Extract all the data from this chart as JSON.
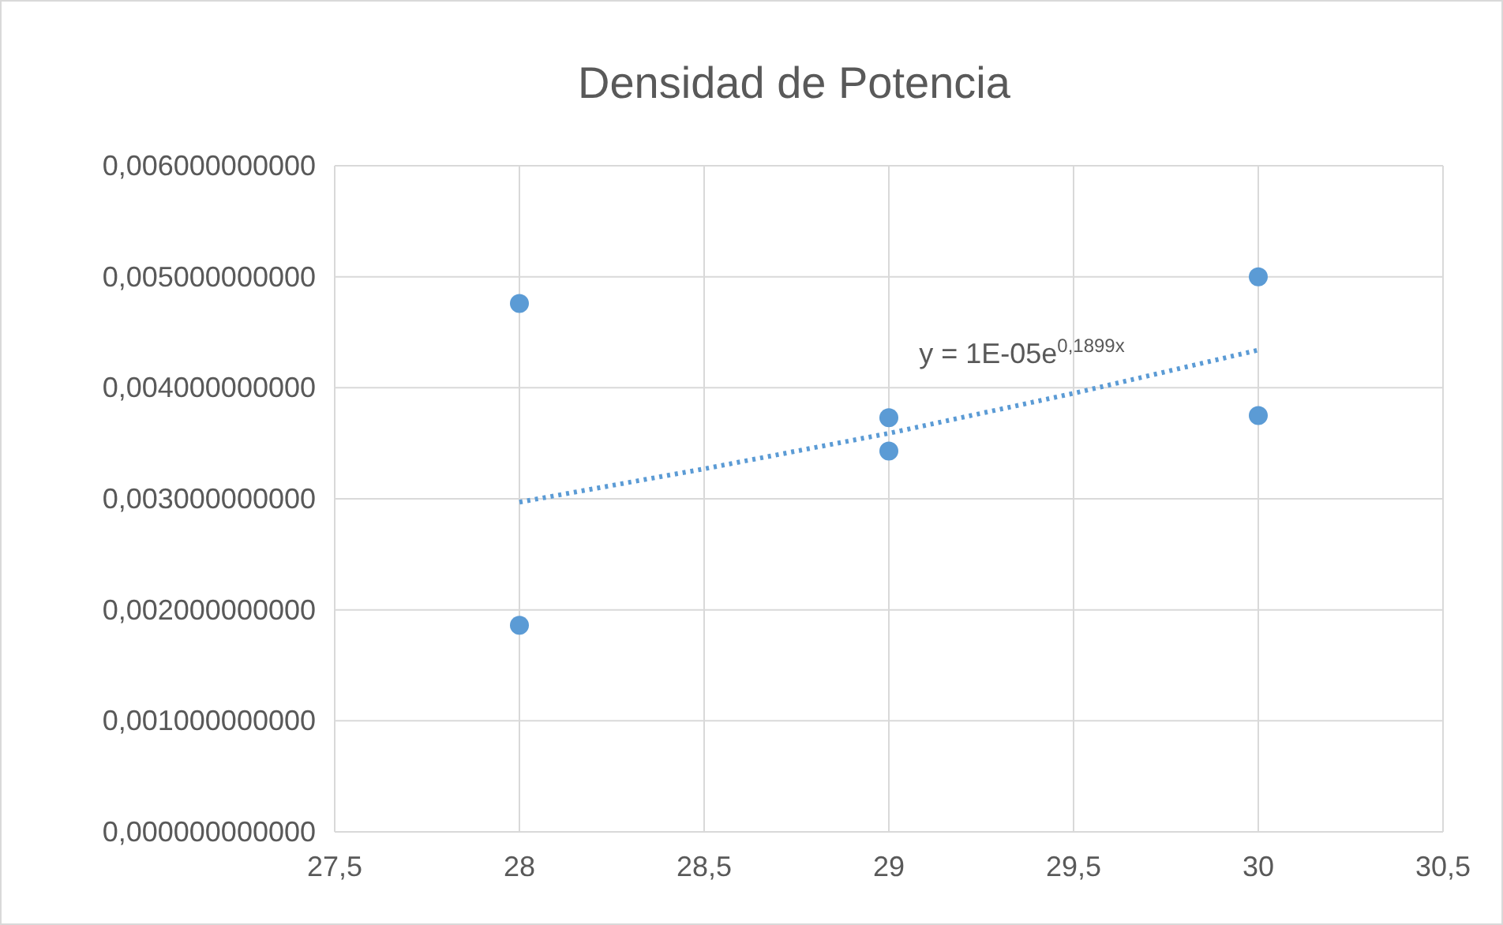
{
  "chart_data": {
    "type": "scatter",
    "title": "Densidad de Potencia",
    "xlim": [
      27.5,
      30.5
    ],
    "xticks": [
      {
        "value": 27.5,
        "label": "27,5"
      },
      {
        "value": 28,
        "label": "28"
      },
      {
        "value": 28.5,
        "label": "28,5"
      },
      {
        "value": 29,
        "label": "29"
      },
      {
        "value": 29.5,
        "label": "29,5"
      },
      {
        "value": 30,
        "label": "30"
      },
      {
        "value": 30.5,
        "label": "30,5"
      }
    ],
    "ylim": [
      0,
      0.006
    ],
    "yticks": [
      {
        "value": 0,
        "label": "0,000000000000"
      },
      {
        "value": 0.001,
        "label": "0,001000000000"
      },
      {
        "value": 0.002,
        "label": "0,002000000000"
      },
      {
        "value": 0.003,
        "label": "0,003000000000"
      },
      {
        "value": 0.004,
        "label": "0,004000000000"
      },
      {
        "value": 0.005,
        "label": "0,005000000000"
      },
      {
        "value": 0.006,
        "label": "0,006000000000"
      }
    ],
    "grid": true,
    "marker": "circle",
    "series": [
      {
        "color": "#5b9bd5",
        "x": [
          28,
          28,
          29,
          29,
          30,
          30
        ],
        "values": [
          0.00476,
          0.00186,
          0.00373,
          0.00343,
          0.005,
          0.00375
        ]
      },
      {
        "type": "line",
        "color": "#5b9bd5",
        "line_style": "dotted",
        "marker": "none",
        "x": [
          28,
          28.5,
          29,
          29.5,
          30
        ],
        "values": [
          0.00297,
          0.00327,
          0.00359,
          0.00395,
          0.00434
        ]
      }
    ],
    "annotations": [
      "y = 1E-05e$^{0,1899x}$"
    ]
  }
}
